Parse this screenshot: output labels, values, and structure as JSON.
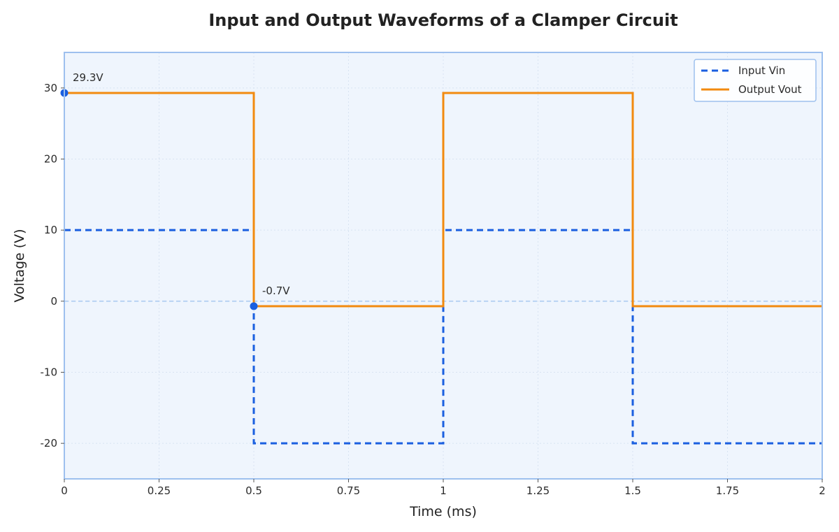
{
  "chart_data": {
    "type": "line",
    "title": "Input and Output Waveforms of a Clamper Circuit",
    "xlabel": "Time (ms)",
    "ylabel": "Voltage (V)",
    "xlim": [
      0,
      2
    ],
    "ylim": [
      -25,
      35
    ],
    "x_ticks": [
      0,
      0.25,
      0.5,
      0.75,
      1,
      1.25,
      1.5,
      1.75,
      2
    ],
    "x_tick_labels": [
      "0",
      "0.25",
      "0.5",
      "0.75",
      "1",
      "1.25",
      "1.5",
      "1.75",
      "2"
    ],
    "y_ticks": [
      -20,
      -10,
      0,
      10,
      20,
      30
    ],
    "y_tick_labels": [
      "-20",
      "-10",
      "0",
      "10",
      "20",
      "30"
    ],
    "grid": true,
    "legend_position": "top-right",
    "zero_reference_line": 0,
    "series": [
      {
        "name": "Input Vin",
        "style": "dashed",
        "color": "#1a5fe0",
        "x": [
          0,
          0.5,
          0.5,
          1,
          1,
          1.5,
          1.5,
          2
        ],
        "y": [
          10,
          10,
          -20,
          -20,
          10,
          10,
          -20,
          -20
        ]
      },
      {
        "name": "Output Vout",
        "style": "solid",
        "color": "#f28a0f",
        "x": [
          0,
          0.5,
          0.5,
          1,
          1,
          1.5,
          1.5,
          2
        ],
        "y": [
          29.3,
          29.3,
          -0.7,
          -0.7,
          29.3,
          29.3,
          -0.7,
          -0.7
        ]
      }
    ],
    "annotations": [
      {
        "text": "29.3V",
        "x": 0,
        "y": 29.3
      },
      {
        "text": "-0.7V",
        "x": 0.5,
        "y": -0.7
      }
    ],
    "colors": {
      "plot_background": "#eff5fd",
      "plot_border": "#9dc0ee",
      "grid": "#d8e3f2",
      "zero_line": "#b9d3f3",
      "marker": "#1a5fe0"
    }
  }
}
